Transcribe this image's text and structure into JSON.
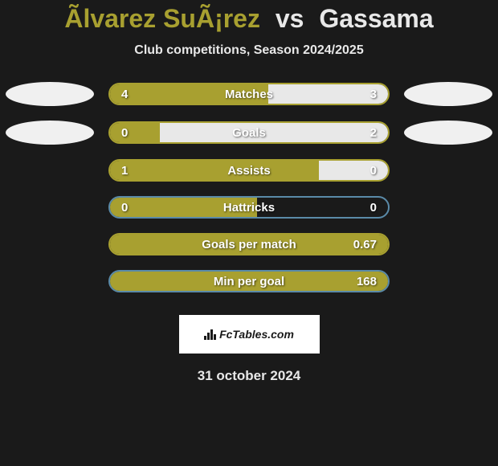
{
  "title": {
    "player1": "Ãlvarez SuÃ¡rez",
    "vs": "vs",
    "player2": "Gassama"
  },
  "subtitle": "Club competitions, Season 2024/2025",
  "date": "31 october 2024",
  "brand": "FcTables.com",
  "colors": {
    "player1_fill": "#a8a030",
    "player2_fill": "#e8e8e8",
    "bar_border": "#a8a030",
    "bar_border_alt": "#5a8aa8",
    "background": "#1a1a1a",
    "ellipse": "#f0f0f0"
  },
  "metrics": [
    {
      "name": "Matches",
      "left_val": "4",
      "right_val": "3",
      "left_pct": 57,
      "right_pct": 43,
      "border_color": "#a8a030",
      "show_left_ellipse": true,
      "show_right_ellipse": true
    },
    {
      "name": "Goals",
      "left_val": "0",
      "right_val": "2",
      "left_pct": 18,
      "right_pct": 82,
      "border_color": "#a8a030",
      "show_left_ellipse": true,
      "show_right_ellipse": true
    },
    {
      "name": "Assists",
      "left_val": "1",
      "right_val": "0",
      "left_pct": 75,
      "right_pct": 25,
      "border_color": "#a8a030",
      "show_left_ellipse": false,
      "show_right_ellipse": false
    },
    {
      "name": "Hattricks",
      "left_val": "0",
      "right_val": "0",
      "left_pct": 53,
      "right_pct": 0,
      "border_color": "#5a8aa8",
      "show_left_ellipse": false,
      "show_right_ellipse": false
    },
    {
      "name": "Goals per match",
      "left_val": "",
      "right_val": "0.67",
      "left_pct": 100,
      "right_pct": 0,
      "border_color": "#a8a030",
      "show_left_ellipse": false,
      "show_right_ellipse": false
    },
    {
      "name": "Min per goal",
      "left_val": "",
      "right_val": "168",
      "left_pct": 100,
      "right_pct": 0,
      "border_color": "#5a8aa8",
      "show_left_ellipse": false,
      "show_right_ellipse": false
    }
  ]
}
